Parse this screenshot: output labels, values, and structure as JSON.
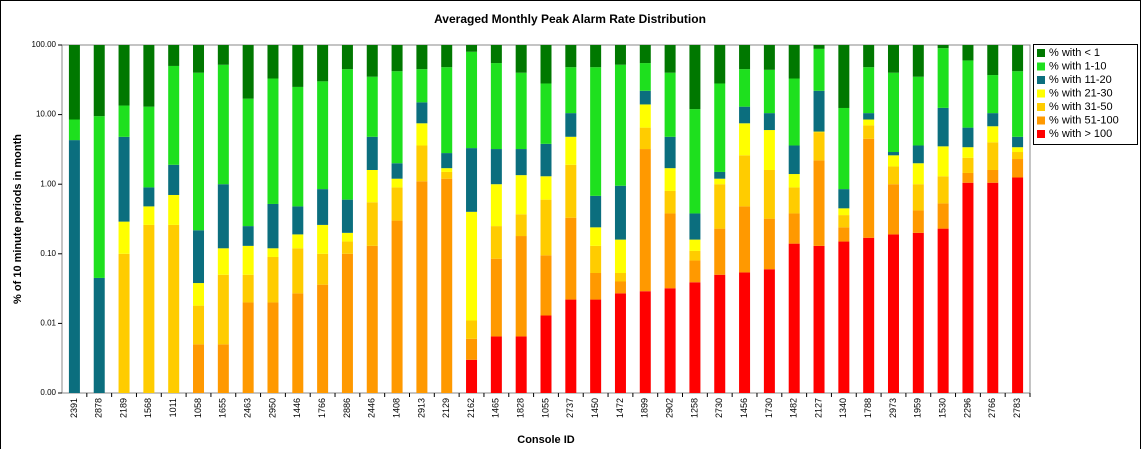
{
  "chart_data": {
    "type": "stacked-bar",
    "title": "Averaged Monthly Peak Alarm Rate Distribution",
    "x_label": "Console ID",
    "y_label": "% of 10 minute periods in month",
    "log_scale": true,
    "legend": "right",
    "categories": [
      "2391",
      "2878",
      "2189",
      "1568",
      "1011",
      "1058",
      "1655",
      "2463",
      "2950",
      "1446",
      "1766",
      "2886",
      "2446",
      "1408",
      "2913",
      "2129",
      "2162",
      "1465",
      "1828",
      "1055",
      "2737",
      "1450",
      "1472",
      "1899",
      "2902",
      "1258",
      "2730",
      "1456",
      "1730",
      "1482",
      "2127",
      "1340",
      "1788",
      "2973",
      "1959",
      "1530",
      "2296",
      "2766",
      "2783"
    ],
    "ylim": [
      0.001,
      100
    ],
    "yticks": [
      {
        "value": 0.001,
        "label": "0.00"
      },
      0.01,
      {
        "value": 0.1,
        "label": "0.10"
      },
      {
        "value": 1,
        "label": "1.00"
      },
      {
        "value": 10,
        "label": "10.00"
      },
      {
        "value": 100,
        "label": "100.00"
      }
    ],
    "series": [
      {
        "name": "% with < 1",
        "color": "#007800",
        "values": [
          91.5,
          90.5,
          86.5,
          87,
          50,
          60,
          48,
          83,
          67,
          75,
          70,
          55,
          65,
          58,
          55,
          52,
          20,
          45,
          60,
          72,
          52,
          52,
          48,
          45,
          60,
          88,
          72,
          55,
          56,
          67,
          12,
          87.5,
          52,
          60,
          65,
          10,
          40,
          63,
          58
        ]
      },
      {
        "name": "% with 1-10",
        "color": "#1ee01e",
        "values": [
          4.2,
          9.45,
          8.7,
          12.1,
          48.1,
          39.8,
          51,
          16.7,
          32.5,
          24.5,
          29.2,
          44.4,
          30.2,
          40,
          30,
          45.2,
          76.7,
          51.8,
          36.8,
          24.2,
          37.5,
          47.3,
          51.1,
          33,
          35.2,
          11.6,
          26.5,
          32,
          33.5,
          29.4,
          66,
          11.6,
          37.5,
          37.1,
          31.4,
          77.5,
          53.5,
          26.5,
          37.2
        ]
      },
      {
        "name": "% with 11-20",
        "color": "#0b6e7e",
        "values": [
          4.3,
          0.045,
          4.5,
          0.42,
          1.2,
          0.18,
          0.88,
          0.12,
          0.4,
          0.29,
          0.59,
          0.4,
          3.2,
          0.8,
          7.5,
          1.1,
          2.9,
          2.2,
          1.85,
          2.5,
          5.7,
          0.44,
          0.79,
          8,
          3.1,
          0.22,
          0.3,
          5.5,
          4.5,
          2.2,
          16.3,
          0.4,
          2,
          0.3,
          1.6,
          9,
          3.1,
          3.7,
          1.4
        ]
      },
      {
        "name": "% with 21-30",
        "color": "#ffff00",
        "values": [
          0,
          0,
          0.19,
          0.22,
          0.44,
          0.02,
          0.07,
          0.08,
          0.03,
          0.07,
          0.16,
          0.05,
          1.05,
          0.3,
          3.9,
          0.2,
          0.39,
          0.75,
          0.98,
          0.7,
          2.9,
          0.11,
          0.107,
          7.5,
          0.9,
          0.05,
          0.2,
          4.9,
          4.4,
          0.5,
          0.1,
          0.09,
          1.5,
          0.8,
          1,
          2.2,
          1,
          2.8,
          0.5
        ]
      },
      {
        "name": "% with 31-50",
        "color": "#ffcc00",
        "values": [
          0,
          0,
          0.1,
          0.26,
          0.26,
          0.013,
          0.045,
          0.03,
          0.07,
          0.093,
          0.064,
          0.05,
          0.42,
          0.6,
          2.5,
          0.3,
          0.005,
          0.165,
          0.19,
          0.505,
          1.57,
          0.077,
          0.013,
          3.3,
          0.42,
          0.03,
          0.77,
          2.12,
          1.28,
          0.52,
          3.4,
          0.12,
          2.5,
          0.8,
          0.58,
          0.77,
          0.95,
          2.4,
          0.6
        ]
      },
      {
        "name": "% with 51-100",
        "color": "#ff9900",
        "values": [
          0,
          0,
          0,
          0,
          0,
          0.005,
          0.005,
          0.02,
          0.02,
          0.027,
          0.036,
          0.1,
          0.13,
          0.3,
          1.1,
          1.2,
          0.003,
          0.0785,
          0.1735,
          0.082,
          0.308,
          0.031,
          0.013,
          3.17,
          0.348,
          0.041,
          0.18,
          0.426,
          0.26,
          0.24,
          2.07,
          0.09,
          4.33,
          0.81,
          0.22,
          0.3,
          0.4,
          0.55,
          1.05
        ]
      },
      {
        "name": "% with > 100",
        "color": "#ff0000",
        "values": [
          0,
          0,
          0,
          0,
          0,
          0,
          0,
          0,
          0,
          0,
          0,
          0,
          0,
          0,
          0,
          0,
          0.003,
          0.0065,
          0.0065,
          0.013,
          0.022,
          0.022,
          0.027,
          0.029,
          0.032,
          0.039,
          0.05,
          0.054,
          0.06,
          0.14,
          0.13,
          0.15,
          0.17,
          0.19,
          0.2,
          0.23,
          1.05,
          1.05,
          1.25
        ]
      }
    ]
  }
}
